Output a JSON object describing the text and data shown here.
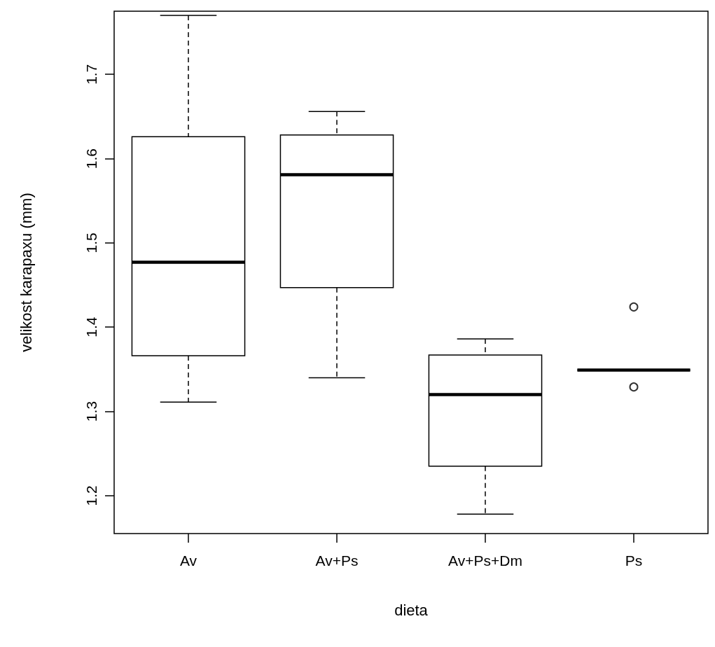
{
  "chart_data": {
    "type": "box",
    "xlabel": "dieta",
    "ylabel": "velikost karapaxu (mm)",
    "categories": [
      "Av",
      "Av+Ps",
      "Av+Ps+Dm",
      "Ps"
    ],
    "boxes": [
      {
        "low": 1.311,
        "q1": 1.366,
        "median": 1.477,
        "q3": 1.626,
        "high": 1.77
      },
      {
        "low": 1.34,
        "q1": 1.447,
        "median": 1.581,
        "q3": 1.628,
        "high": 1.656
      },
      {
        "low": 1.178,
        "q1": 1.235,
        "median": 1.32,
        "q3": 1.367,
        "high": 1.386
      },
      {
        "low": 1.349,
        "q1": 1.349,
        "median": 1.349,
        "q3": 1.349,
        "high": 1.349,
        "outliers": [
          1.424,
          1.329
        ]
      }
    ],
    "ylim": [
      1.155,
      1.775
    ],
    "yticks": [
      1.2,
      1.3,
      1.4,
      1.5,
      1.6,
      1.7
    ],
    "grid": false
  }
}
